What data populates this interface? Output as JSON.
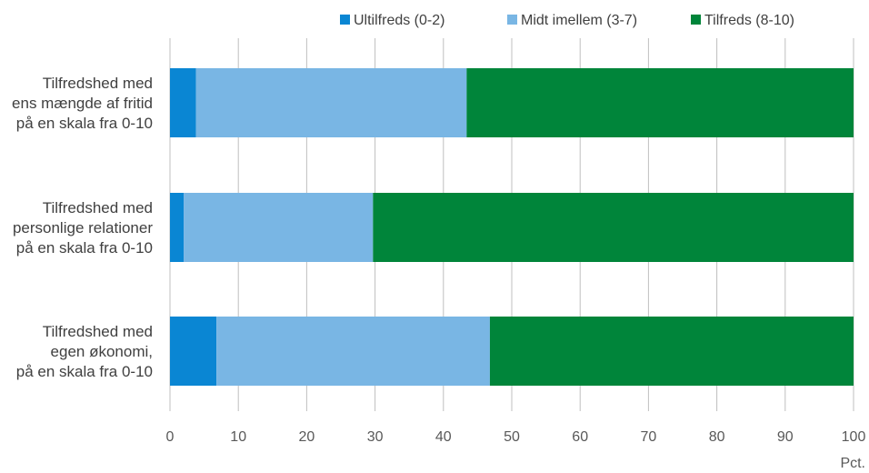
{
  "chart_data": {
    "type": "bar",
    "orientation": "horizontal",
    "stacked": true,
    "categories": [
      [
        "Tilfredshed med",
        "ens mængde af fritid",
        "på en skala fra 0-10"
      ],
      [
        "Tilfredshed med",
        "personlige relationer",
        "på en skala fra 0-10"
      ],
      [
        "Tilfredshed med",
        "egen økonomi,",
        "på en skala fra 0-10"
      ]
    ],
    "series": [
      {
        "name": "Ultilfreds (0-2)",
        "color": "#0a86d3",
        "values": [
          3.8,
          2.0,
          6.8
        ]
      },
      {
        "name": "Midt imellem (3-7)",
        "color": "#79b6e4",
        "values": [
          39.6,
          27.7,
          40.0
        ]
      },
      {
        "name": "Tilfreds (8-10)",
        "color": "#00853a",
        "values": [
          56.6,
          70.3,
          53.2
        ]
      }
    ],
    "xlim": [
      0,
      100
    ],
    "xticks": [
      0,
      10,
      20,
      30,
      40,
      50,
      60,
      70,
      80,
      90,
      100
    ],
    "xunit": "Pct.",
    "grid": "vertical",
    "legend_position": "top"
  }
}
